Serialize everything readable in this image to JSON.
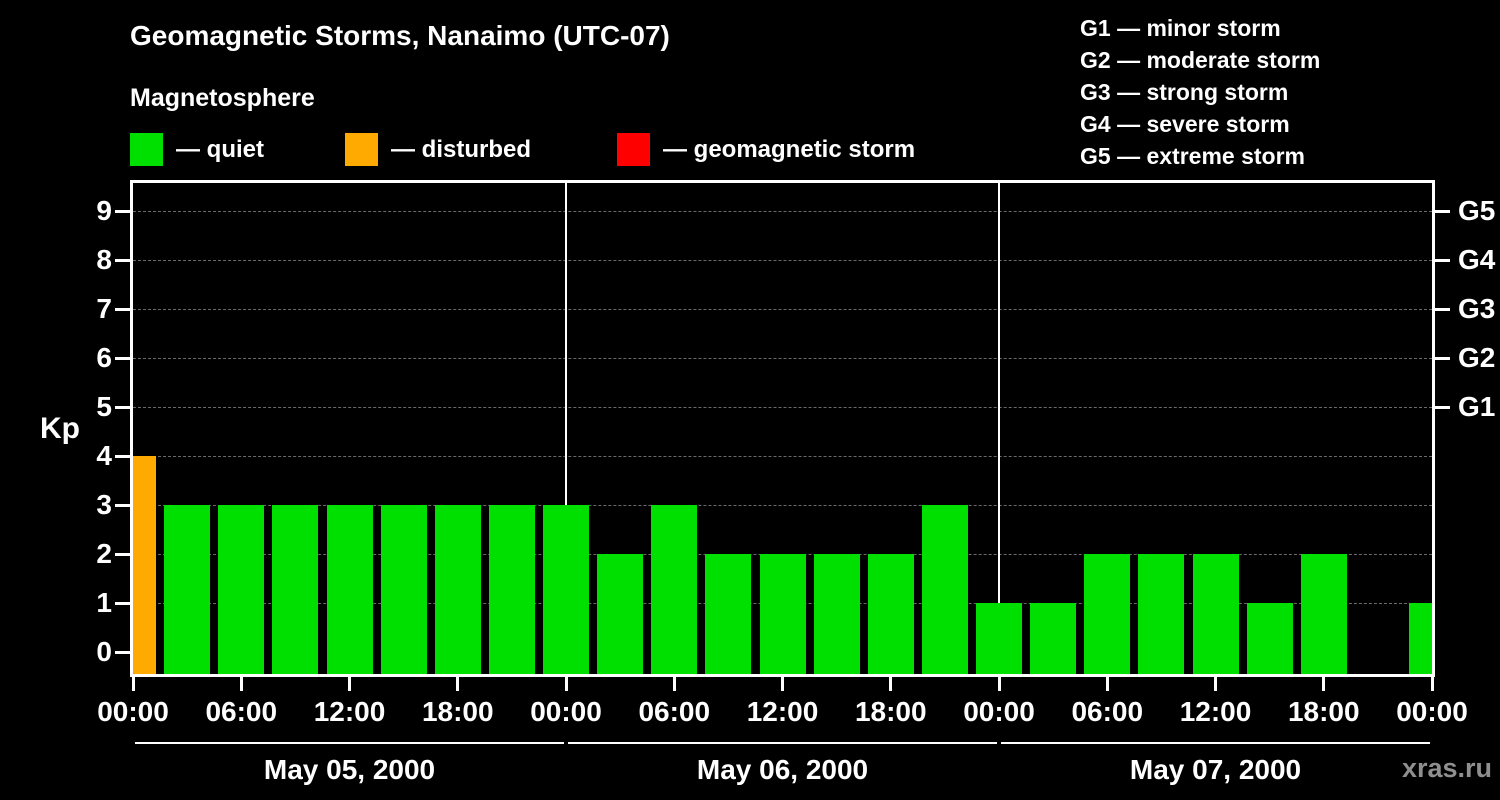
{
  "title": "Geomagnetic Storms, Nanaimo (UTC-07)",
  "subtitle": "Magnetosphere",
  "watermark": "xras.ru",
  "legend": {
    "quiet": {
      "label": "— quiet",
      "color": "#00e000"
    },
    "disturbed": {
      "label": "— disturbed",
      "color": "#ffaa00"
    },
    "storm": {
      "label": "— geomagnetic storm",
      "color": "#ff0000"
    }
  },
  "g_legend": [
    "G1 — minor storm",
    "G2 — moderate storm",
    "G3 — strong storm",
    "G4 — severe storm",
    "G5 — extreme storm"
  ],
  "chart_data": {
    "type": "bar",
    "title": "Geomagnetic Storms, Nanaimo (UTC-07)",
    "ylabel": "Kp",
    "ylim": [
      0,
      9.5
    ],
    "yticks": [
      0,
      1,
      2,
      3,
      4,
      5,
      6,
      7,
      8,
      9
    ],
    "grid": "dashed horizontal lines at Kp 1-9, solid vertical lines at day boundaries",
    "legend_position": "top",
    "bar_interval_hours": 3,
    "x_range_hours": [
      0,
      72
    ],
    "x_tick_labels": [
      "00:00",
      "06:00",
      "12:00",
      "18:00",
      "00:00",
      "06:00",
      "12:00",
      "18:00",
      "00:00",
      "06:00",
      "12:00",
      "18:00",
      "00:00"
    ],
    "right_axis": [
      {
        "kp": 5,
        "label": "G1"
      },
      {
        "kp": 6,
        "label": "G2"
      },
      {
        "kp": 7,
        "label": "G3"
      },
      {
        "kp": 8,
        "label": "G4"
      },
      {
        "kp": 9,
        "label": "G5"
      }
    ],
    "days": [
      {
        "label": "May 05, 2000",
        "values": [
          4,
          3,
          3,
          3,
          3,
          3,
          3,
          3
        ]
      },
      {
        "label": "May 06, 2000",
        "values": [
          3,
          2,
          3,
          2,
          2,
          2,
          2,
          3
        ]
      },
      {
        "label": "May 07, 2000",
        "values": [
          1,
          1,
          2,
          2,
          2,
          1,
          2,
          null
        ]
      }
    ],
    "trailing_partial_bar": {
      "hour": 72,
      "value": 1
    },
    "thresholds": {
      "green_max_kp": 3,
      "orange_kp": 4,
      "red_min_kp": 5
    }
  }
}
